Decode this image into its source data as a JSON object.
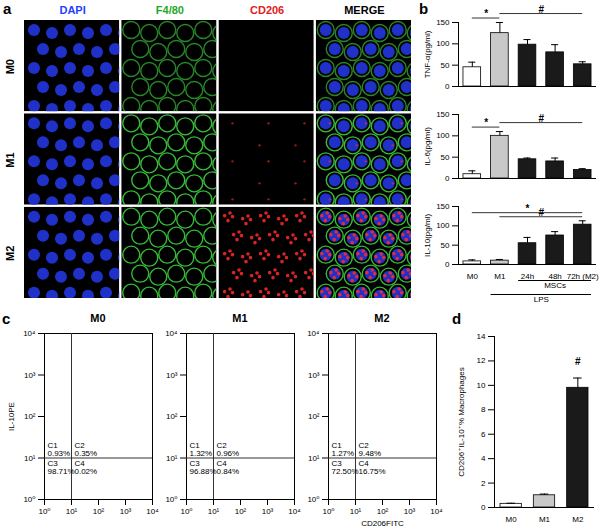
{
  "figure_images": {
    "panel_label": "a",
    "columns": [
      "DAPI",
      "F4/80",
      "CD206",
      "MERGE"
    ],
    "rows": [
      "M0",
      "M1",
      "M2"
    ]
  },
  "chart_data": [
    {
      "type": "bar",
      "panel_label": "b",
      "y_label": "TNF-α(pg/ml)",
      "categories": [
        "M0",
        "M1",
        "24h",
        "48h",
        "72h (M2)"
      ],
      "values": [
        45,
        125,
        98,
        80,
        52
      ],
      "errors": [
        12,
        25,
        12,
        18,
        6
      ],
      "colors": [
        "#ffffff",
        "#c8c8c8",
        "#1a1a1a",
        "#1a1a1a",
        "#1a1a1a"
      ],
      "ylim": [
        0,
        150
      ],
      "yticks": [
        0,
        50,
        100,
        150
      ],
      "tick_labels": "y",
      "annotations": [
        {
          "text": "*",
          "from": "M0",
          "to": "M1"
        },
        {
          "text": "#",
          "from": "M1",
          "to": "72h (M2)"
        }
      ]
    },
    {
      "type": "bar",
      "y_label": "IL-6(pg/ml)",
      "categories": [
        "M0",
        "M1",
        "24h",
        "48h",
        "72h (M2)"
      ],
      "values": [
        10,
        100,
        45,
        40,
        20
      ],
      "errors": [
        8,
        10,
        3,
        8,
        3
      ],
      "colors": [
        "#ffffff",
        "#c8c8c8",
        "#1a1a1a",
        "#1a1a1a",
        "#1a1a1a"
      ],
      "ylim": [
        0,
        150
      ],
      "yticks": [
        0,
        50,
        100,
        150
      ],
      "tick_labels": "y",
      "annotations": [
        {
          "text": "*",
          "from": "M0",
          "to": "M1"
        },
        {
          "text": "#",
          "from": "M1",
          "to": "72h (M2)"
        }
      ]
    },
    {
      "type": "bar",
      "y_label": "IL-10(pg/ml)",
      "categories": [
        "M0",
        "M1",
        "24h",
        "48h",
        "72h (M2)"
      ],
      "values": [
        8,
        10,
        55,
        75,
        103
      ],
      "errors": [
        4,
        3,
        15,
        10,
        10
      ],
      "colors": [
        "#ffffff",
        "#c8c8c8",
        "#1a1a1a",
        "#1a1a1a",
        "#1a1a1a"
      ],
      "ylim": [
        0,
        150
      ],
      "yticks": [
        0,
        50,
        100,
        150
      ],
      "tick_labels": true,
      "annotations": [
        {
          "text": "#",
          "from": "M1",
          "to": "72h (M2)"
        },
        {
          "text": "*",
          "from": "M0",
          "to": "72h (M2)"
        }
      ],
      "x_group_labels": [
        {
          "text": "MSCs",
          "from": "24h",
          "to": "72h (M2)"
        },
        {
          "text": "LPS",
          "from": "M1",
          "to": "72h (M2)"
        }
      ]
    },
    {
      "type": "quadrant",
      "panel_label": "c",
      "title": "M0",
      "y_label": "IL-10PE",
      "log": true,
      "xlim": [
        1,
        10000
      ],
      "ylim": [
        1,
        10000
      ],
      "xticks": [
        {
          "value": 1,
          "label": "10⁰"
        },
        {
          "value": 10,
          "label": "10¹"
        },
        {
          "value": 100,
          "label": "10²"
        },
        {
          "value": 1000,
          "label": "10³"
        },
        {
          "value": 10000,
          "label": "10⁴"
        }
      ],
      "yticks": [
        {
          "value": 1,
          "label": "10⁰"
        },
        {
          "value": 10,
          "label": "10¹"
        },
        {
          "value": 100,
          "label": "10²"
        },
        {
          "value": 1000,
          "label": "10³"
        },
        {
          "value": 10000,
          "label": "10⁴"
        }
      ],
      "gate": {
        "x": 10,
        "y": 10
      },
      "quadrants": [
        {
          "name": "C1",
          "label": "0.93%"
        },
        {
          "name": "C2",
          "label": "0.35%"
        },
        {
          "name": "C3",
          "label": "98.71%"
        },
        {
          "name": "C4",
          "label": "0.02%"
        }
      ]
    },
    {
      "type": "quadrant",
      "title": "M1",
      "log": true,
      "xlim": [
        1,
        10000
      ],
      "ylim": [
        1,
        10000
      ],
      "xticks": [
        {
          "value": 1,
          "label": "10⁰"
        },
        {
          "value": 10,
          "label": "10¹"
        },
        {
          "value": 100,
          "label": "10²"
        },
        {
          "value": 1000,
          "label": "10³"
        },
        {
          "value": 10000,
          "label": "10⁴"
        }
      ],
      "yticks": [
        {
          "value": 1,
          "label": "10⁰"
        },
        {
          "value": 10,
          "label": "10¹"
        },
        {
          "value": 100,
          "label": "10²"
        },
        {
          "value": 1000,
          "label": "10³"
        },
        {
          "value": 10000,
          "label": "10⁴"
        }
      ],
      "gate": {
        "x": 10,
        "y": 10
      },
      "quadrants": [
        {
          "name": "C1",
          "label": "1.32%"
        },
        {
          "name": "C2",
          "label": "0.96%"
        },
        {
          "name": "C3",
          "label": "96.88%"
        },
        {
          "name": "C4",
          "label": "0.84%"
        }
      ]
    },
    {
      "type": "quadrant",
      "title": "M2",
      "x_label": "CD206FITC",
      "log": true,
      "xlim": [
        1,
        10000
      ],
      "ylim": [
        1,
        10000
      ],
      "xticks": [
        {
          "value": 1,
          "label": "10⁰"
        },
        {
          "value": 10,
          "label": "10¹"
        },
        {
          "value": 100,
          "label": "10²"
        },
        {
          "value": 1000,
          "label": "10³"
        },
        {
          "value": 10000,
          "label": "10⁴"
        }
      ],
      "yticks": [
        {
          "value": 1,
          "label": "10⁰"
        },
        {
          "value": 10,
          "label": "10¹"
        },
        {
          "value": 100,
          "label": "10²"
        },
        {
          "value": 1000,
          "label": "10³"
        },
        {
          "value": 10000,
          "label": "10⁴"
        }
      ],
      "gate": {
        "x": 10,
        "y": 10
      },
      "quadrants": [
        {
          "name": "C1",
          "label": "1.27%"
        },
        {
          "name": "C2",
          "label": "9.48%"
        },
        {
          "name": "C3",
          "label": "72.50%"
        },
        {
          "name": "C4",
          "label": "16.75%"
        }
      ]
    },
    {
      "type": "bar",
      "panel_label": "d",
      "y_label": "CD206⁺IL-10⁺% Macrophages",
      "categories": [
        "M0",
        "M1",
        "M2"
      ],
      "values": [
        0.3,
        1.0,
        9.8
      ],
      "errors": [
        0.05,
        0.1,
        0.8
      ],
      "colors": [
        "#ffffff",
        "#c8c8c8",
        "#1a1a1a"
      ],
      "ylim": [
        0,
        14
      ],
      "yticks": [
        0,
        2,
        4,
        6,
        8,
        10,
        12,
        14
      ],
      "tick_labels": true,
      "annotations": [
        {
          "text": "#",
          "from": "M2",
          "to": "M2"
        }
      ]
    }
  ]
}
